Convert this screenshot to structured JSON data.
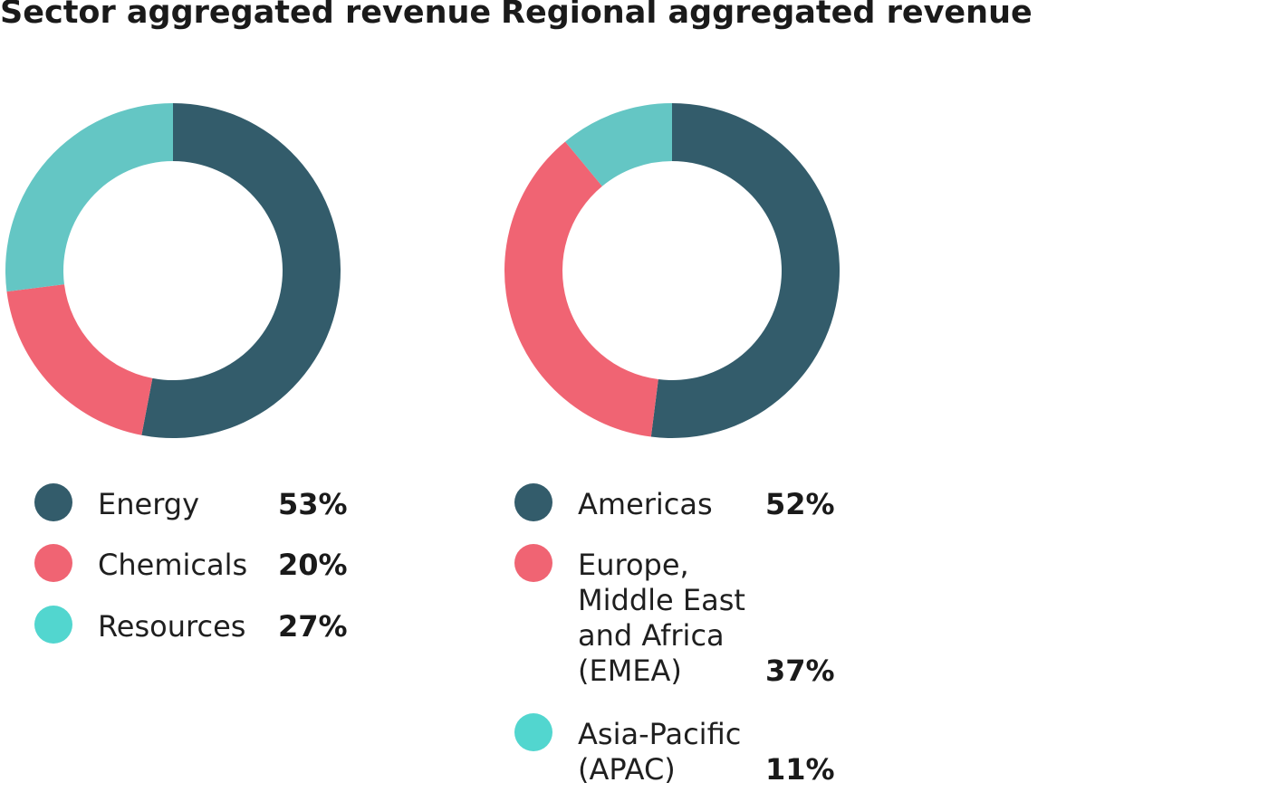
{
  "chart_data": [
    {
      "type": "pie",
      "title": "Sector aggregated revenue",
      "categories": [
        "Energy",
        "Chemicals",
        "Resources"
      ],
      "values": [
        53,
        20,
        27
      ],
      "value_labels": [
        "53%",
        "20%",
        "27%"
      ],
      "colors": [
        "#335c6b",
        "#f06473",
        "#64c6c4"
      ],
      "legend_colors": [
        "#335c6b",
        "#f06473",
        "#52d6cf"
      ],
      "unit": "%",
      "donut": true,
      "legend_position": "bottom"
    },
    {
      "type": "pie",
      "title": "Regional aggregated revenue",
      "categories": [
        "Americas",
        "Europe, Middle East and Africa (EMEA)",
        "Asia-Pacific (APAC)"
      ],
      "legend_labels": [
        "Americas",
        "Europe,\nMiddle East\nand Africa\n(EMEA)",
        "Asia-Pacific\n(APAC)"
      ],
      "values": [
        52,
        37,
        11
      ],
      "value_labels": [
        "52%",
        "37%",
        "11%"
      ],
      "colors": [
        "#335c6b",
        "#f06473",
        "#64c6c4"
      ],
      "legend_colors": [
        "#335c6b",
        "#f06473",
        "#52d6cf"
      ],
      "unit": "%",
      "donut": true,
      "legend_position": "bottom"
    }
  ]
}
